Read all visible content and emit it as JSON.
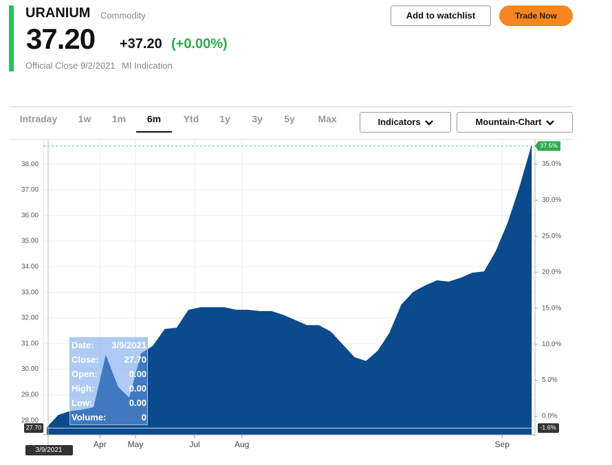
{
  "header": {
    "title": "URANIUM",
    "type": "Commodity",
    "price": "37.20",
    "change": "+37.20",
    "change_pct": "(+0.00%)",
    "close_info": "Official Close 9/2/2021",
    "indication": "MI Indication",
    "buttons": [
      "Add to watchlist",
      "Trade Now"
    ]
  },
  "toolbar": {
    "tabs": [
      "Intraday",
      "1w",
      "1m",
      "6m",
      "Ytd",
      "1y",
      "3y",
      "5y",
      "Max"
    ],
    "active": 3,
    "dropdowns": [
      "Indicators",
      "Mountain-Chart"
    ]
  },
  "chart_data": {
    "type": "area",
    "color": "#0b4a8c",
    "categories": [
      null,
      null,
      null,
      null,
      "Apr",
      null,
      null,
      "May",
      null,
      null,
      null,
      null,
      "Jul",
      null,
      null,
      null,
      "Aug",
      null,
      null,
      null,
      null,
      null,
      null,
      null,
      null,
      null,
      null,
      null,
      null,
      null,
      null,
      null,
      null,
      null,
      null,
      null,
      null,
      null,
      "Sep",
      null,
      null,
      null
    ],
    "values": [
      27.7,
      28.2,
      28.35,
      28.4,
      28.5,
      30.5,
      29.3,
      28.85,
      30.6,
      30.9,
      31.55,
      31.6,
      32.3,
      32.4,
      32.4,
      32.4,
      32.3,
      32.3,
      32.25,
      32.25,
      32.1,
      31.9,
      31.7,
      31.7,
      31.45,
      30.95,
      30.45,
      30.3,
      30.7,
      31.4,
      32.5,
      33.0,
      33.25,
      33.45,
      33.4,
      33.55,
      33.75,
      33.8,
      34.6,
      35.7,
      37.1,
      38.7
    ],
    "ylim": [
      27.44,
      38.97
    ],
    "yticks": [
      {
        "value": 28,
        "label": "28.00"
      },
      {
        "value": 29,
        "label": "29.00"
      },
      {
        "value": 30,
        "label": "30.00"
      },
      {
        "value": 31,
        "label": "31.00"
      },
      {
        "value": 32,
        "label": "32.00"
      },
      {
        "value": 33,
        "label": "33.00"
      },
      {
        "value": 34,
        "label": "34.00"
      },
      {
        "value": 35,
        "label": "35.00"
      },
      {
        "value": 36,
        "label": "36.00"
      },
      {
        "value": 37,
        "label": "37.00"
      },
      {
        "value": 38,
        "label": "38.00"
      }
    ],
    "y2lim": [
      -2.57,
      38.42
    ],
    "y2ticks": [
      {
        "value": 0,
        "label": "0.0%"
      },
      {
        "value": 5,
        "label": "5.0%"
      },
      {
        "value": 10,
        "label": "10.0%"
      },
      {
        "value": 15,
        "label": "15.0%"
      },
      {
        "value": 20,
        "label": "20.0%"
      },
      {
        "value": 25,
        "label": "25.0%"
      },
      {
        "value": 30,
        "label": "30.0%"
      },
      {
        "value": 35,
        "label": "35.0%"
      }
    ],
    "grid": true,
    "last_marker": {
      "value": 37.5,
      "label": "37.5%"
    },
    "crosshair": {
      "date": "3/9/2021",
      "value": 27.7,
      "value_label": "27.70",
      "pct_label": "-1.6%"
    },
    "tooltip": [
      [
        "Date:",
        "3/9/2021"
      ],
      [
        "Close:",
        "27.70"
      ],
      [
        "Open:",
        "0.00"
      ],
      [
        "High:",
        "0.00"
      ],
      [
        "Low:",
        "0.00"
      ],
      [
        "Volume:",
        "0"
      ]
    ]
  }
}
